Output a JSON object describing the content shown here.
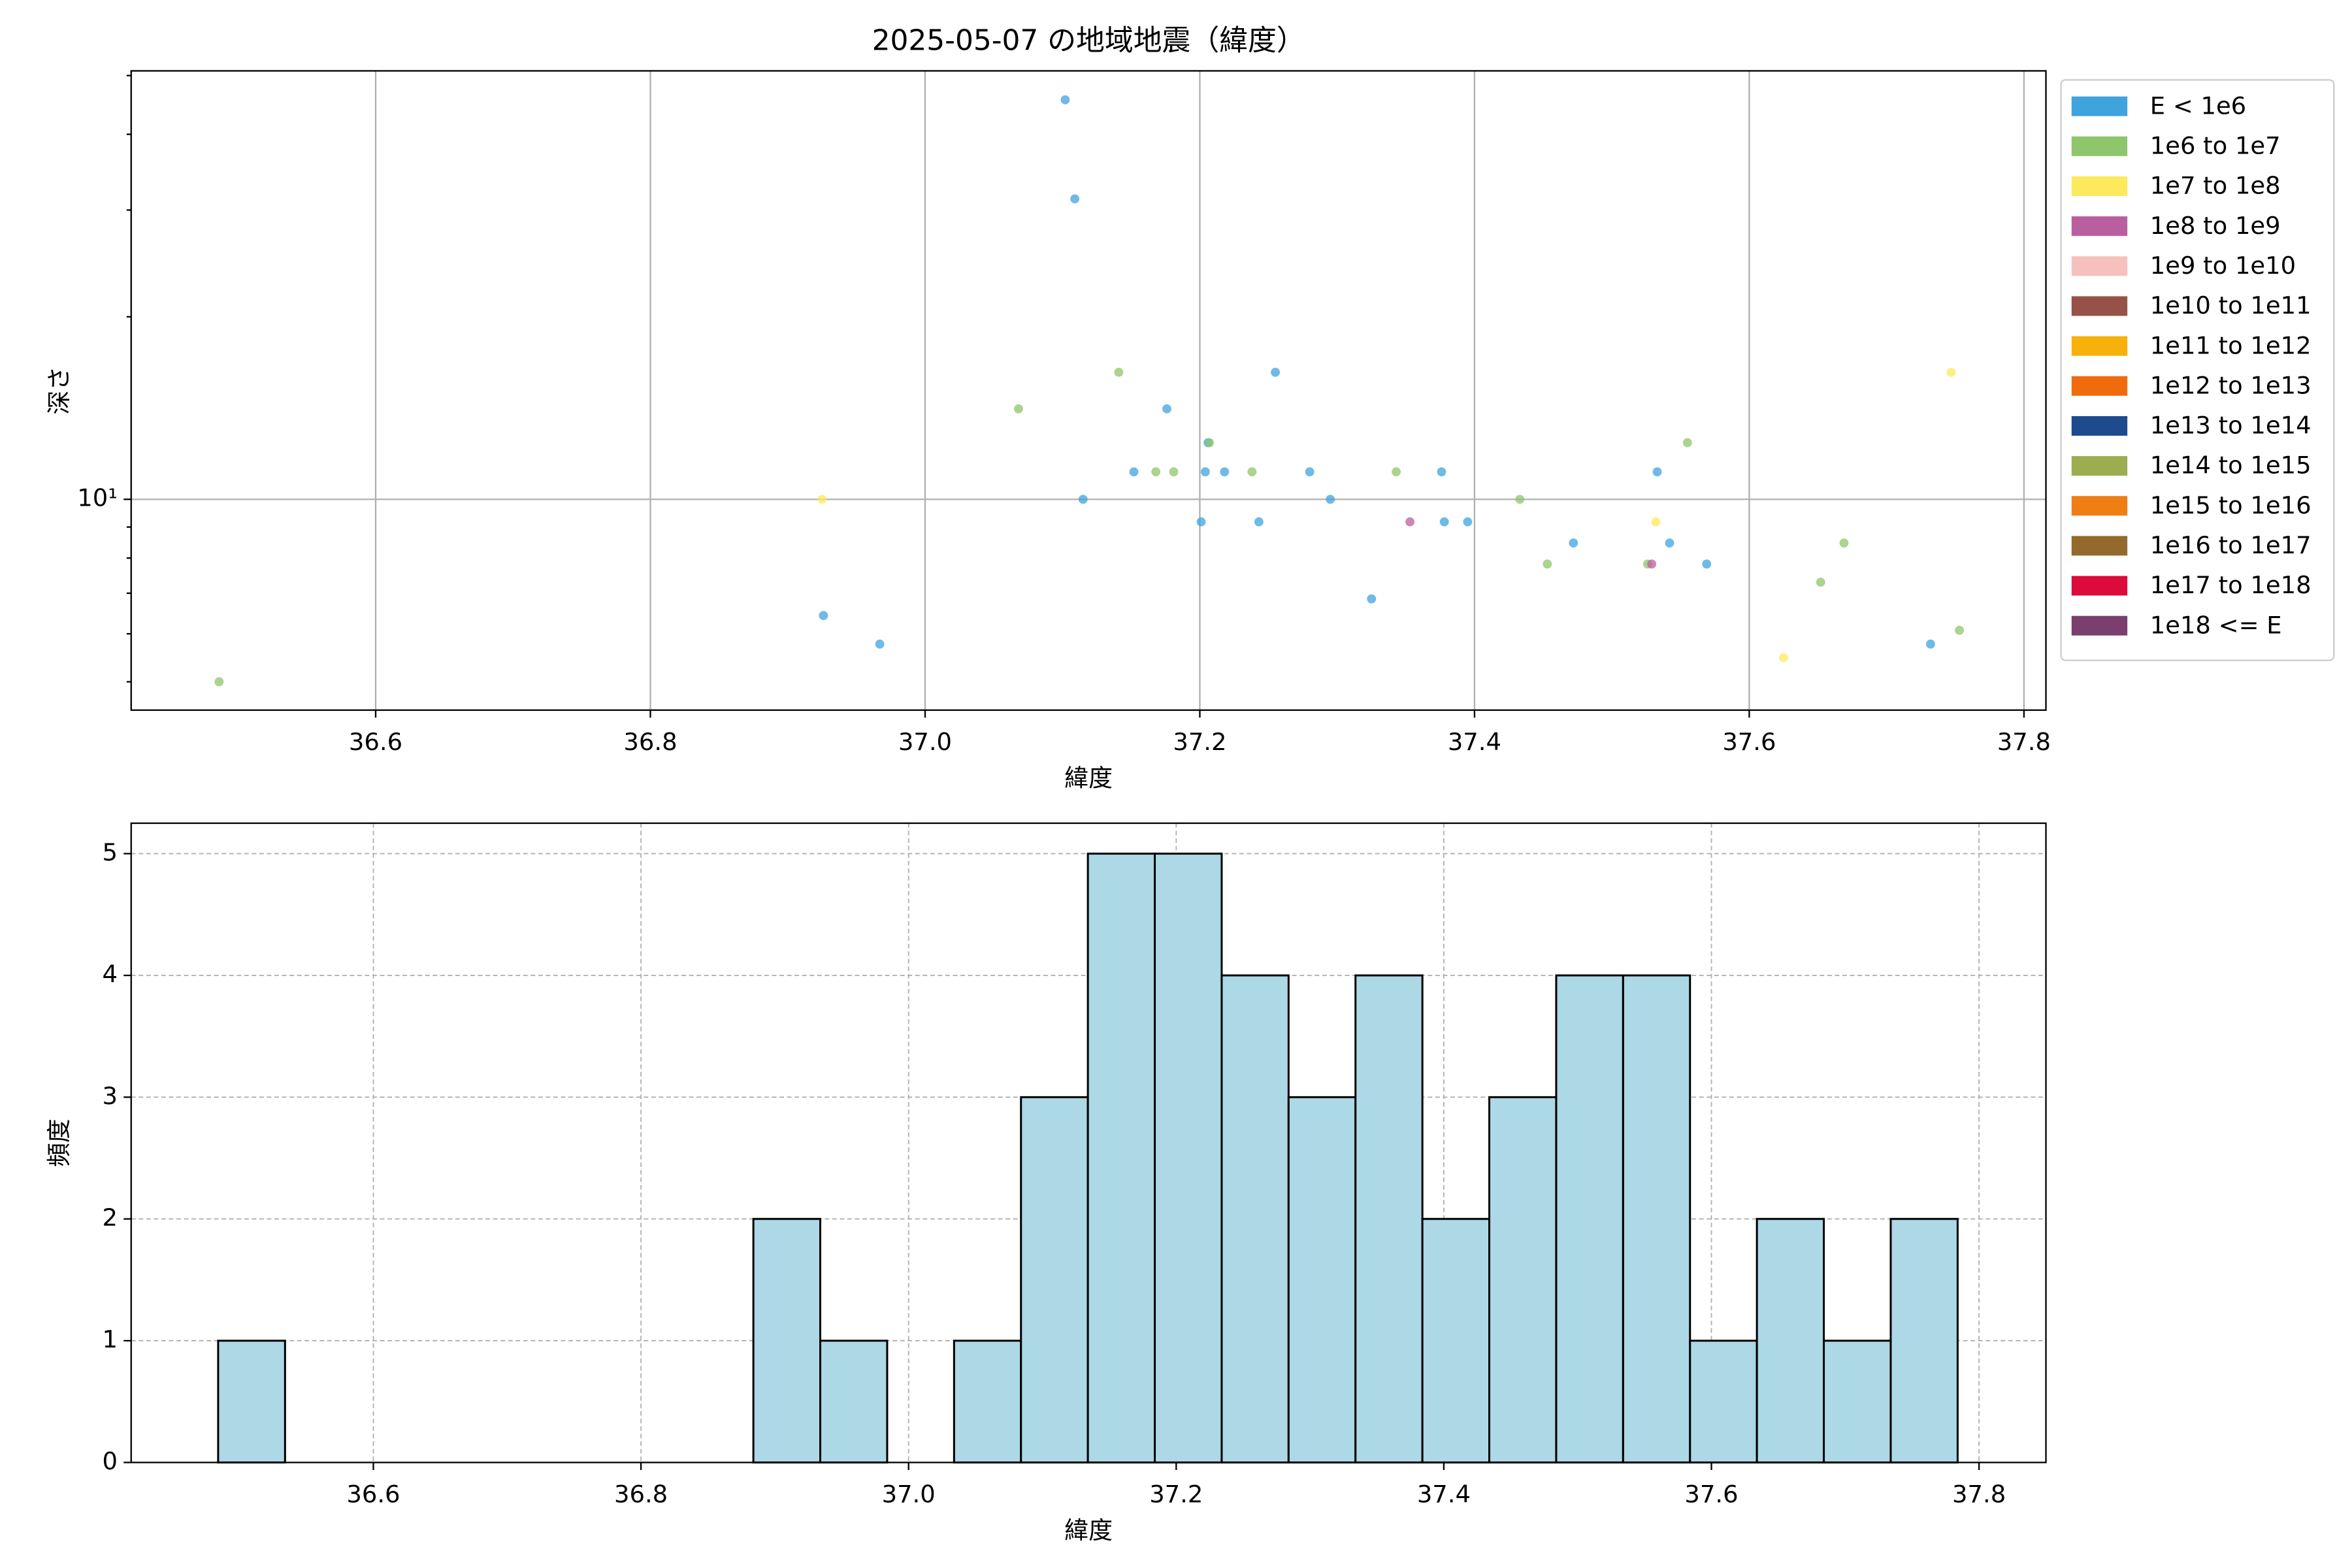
{
  "chart_data": [
    {
      "type": "scatter",
      "title": "2025-05-07 の地域地震（緯度）",
      "xlabel": "緯度",
      "ylabel": "深さ",
      "xlim": [
        36.422,
        37.816
      ],
      "xticks": [
        36.6,
        36.8,
        {
          "value": 37,
          "label": "37.0"
        },
        37.2,
        37.4,
        37.6,
        37.8
      ],
      "ylim": [
        4.49,
        50.9
      ],
      "yscale": "log",
      "yticks": [
        {
          "value": 10,
          "label": "10¹"
        }
      ],
      "yminor": [
        5,
        6,
        7,
        8,
        9,
        20,
        30,
        40,
        50
      ],
      "grid": true,
      "legend": "outside-right",
      "series": [
        {
          "name": "E < 1e6",
          "color": "#3fa3dd",
          "x": [
            36.926,
            36.967,
            37.102,
            37.109,
            37.115,
            37.152,
            37.176,
            37.201,
            37.204,
            37.206,
            37.218,
            37.243,
            37.255,
            37.28,
            37.295,
            37.325,
            37.376,
            37.378,
            37.395,
            37.472,
            37.533,
            37.542,
            37.569,
            37.732
          ],
          "values": [
            6.43,
            5.77,
            45.6,
            31.3,
            10,
            11.1,
            14.1,
            9.18,
            11.1,
            12.4,
            11.1,
            9.18,
            16.2,
            11.1,
            10,
            6.85,
            11.1,
            9.18,
            9.18,
            8.47,
            11.1,
            8.47,
            7.82,
            5.77
          ]
        },
        {
          "name": "1e6 to 1e7",
          "color": "#8dc66b",
          "x": [
            36.486,
            37.068,
            37.141,
            37.168,
            37.181,
            37.207,
            37.238,
            37.343,
            37.433,
            37.453,
            37.526,
            37.555,
            37.652,
            37.669,
            37.753
          ],
          "values": [
            5.0,
            14.1,
            16.2,
            11.1,
            11.1,
            12.4,
            11.1,
            11.1,
            10,
            7.82,
            7.82,
            12.4,
            7.3,
            8.47,
            6.08
          ]
        },
        {
          "name": "1e7 to 1e8",
          "color": "#fde95c",
          "x": [
            36.925,
            37.532,
            37.625,
            37.747
          ],
          "values": [
            10,
            9.18,
            5.48,
            16.2
          ]
        },
        {
          "name": "1e8 to 1e9",
          "color": "#b95fa0",
          "x": [
            37.353,
            37.529
          ],
          "values": [
            9.18,
            7.82
          ]
        },
        {
          "name": "1e9 to 1e10",
          "color": "#f6c1bd",
          "x": [],
          "values": []
        },
        {
          "name": "1e10 to 1e11",
          "color": "#965149",
          "x": [],
          "values": []
        },
        {
          "name": "1e11 to 1e12",
          "color": "#f6b20b",
          "x": [],
          "values": []
        },
        {
          "name": "1e12 to 1e13",
          "color": "#f06b0d",
          "x": [],
          "values": []
        },
        {
          "name": "1e13 to 1e14",
          "color": "#1e4a8e",
          "x": [],
          "values": []
        },
        {
          "name": "1e14 to 1e15",
          "color": "#9bad4e",
          "x": [],
          "values": []
        },
        {
          "name": "1e15 to 1e16",
          "color": "#ef7e14",
          "x": [],
          "values": []
        },
        {
          "name": "1e16 to 1e17",
          "color": "#946a2c",
          "x": [],
          "values": []
        },
        {
          "name": "1e17 to 1e18",
          "color": "#dc0b3c",
          "x": [],
          "values": []
        },
        {
          "name": "1e18 <= E",
          "color": "#7a3f6e",
          "x": [],
          "values": []
        }
      ]
    },
    {
      "type": "histogram",
      "xlabel": "緯度",
      "ylabel": "頻度",
      "bins": [
        36.484,
        36.534,
        36.584,
        36.634,
        36.684,
        36.734,
        36.784,
        36.834,
        36.884,
        36.934,
        36.984,
        37.034,
        37.084,
        37.134,
        37.184,
        37.234,
        37.284,
        37.334,
        37.384,
        37.434,
        37.484,
        37.534,
        37.584,
        37.634,
        37.684,
        37.734,
        37.784
      ],
      "values": [
        1,
        0,
        0,
        0,
        0,
        0,
        0,
        0,
        2,
        1,
        0,
        1,
        3,
        5,
        5,
        4,
        3,
        4,
        2,
        3,
        4,
        4,
        1,
        2,
        1,
        2
      ],
      "color": "#add8e6",
      "edgecolor": "#000000",
      "xlim": [
        36.419,
        37.85
      ],
      "xticks": [
        36.6,
        36.8,
        {
          "value": 37,
          "label": "37.0"
        },
        37.2,
        37.4,
        37.6,
        37.8
      ],
      "ylim": [
        0,
        5.25
      ],
      "yticks": [
        0,
        1,
        2,
        3,
        4,
        5
      ],
      "grid": "dashed"
    }
  ]
}
